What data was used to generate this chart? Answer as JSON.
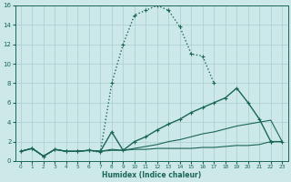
{
  "xlabel": "Humidex (Indice chaleur)",
  "xlim": [
    -0.5,
    23.5
  ],
  "ylim": [
    0,
    16
  ],
  "xticks": [
    0,
    1,
    2,
    3,
    4,
    5,
    6,
    7,
    8,
    9,
    10,
    11,
    12,
    13,
    14,
    15,
    16,
    17,
    18,
    19,
    20,
    21,
    22,
    23
  ],
  "yticks": [
    0,
    2,
    4,
    6,
    8,
    10,
    12,
    14,
    16
  ],
  "bg_color": "#cce8e8",
  "grid_color": "#aacece",
  "line_color": "#1a6655",
  "lines": [
    {
      "x": [
        0,
        1,
        2,
        3,
        4,
        5,
        6,
        7,
        8,
        9,
        10,
        11,
        12,
        13,
        14,
        15,
        16,
        17,
        18,
        19,
        20,
        21,
        22,
        23
      ],
      "y": [
        1.0,
        1.3,
        0.5,
        1.2,
        1.0,
        1.0,
        1.1,
        1.0,
        1.1,
        1.1,
        1.2,
        1.2,
        1.3,
        1.3,
        1.3,
        1.3,
        1.4,
        1.4,
        1.5,
        1.6,
        1.6,
        1.7,
        2.0,
        2.0
      ],
      "ls": "-",
      "marker": null,
      "lw": 0.8,
      "ms": 0
    },
    {
      "x": [
        0,
        1,
        2,
        3,
        4,
        5,
        6,
        7,
        8,
        9,
        10,
        11,
        12,
        13,
        14,
        15,
        16,
        17,
        18,
        19,
        20,
        21,
        22,
        23
      ],
      "y": [
        1.0,
        1.3,
        0.5,
        1.2,
        1.0,
        1.0,
        1.1,
        1.0,
        1.2,
        1.1,
        1.3,
        1.5,
        1.7,
        2.0,
        2.2,
        2.5,
        2.8,
        3.0,
        3.3,
        3.6,
        3.8,
        4.0,
        4.2,
        2.0
      ],
      "ls": "-",
      "marker": null,
      "lw": 0.8,
      "ms": 0
    },
    {
      "x": [
        0,
        1,
        2,
        3,
        4,
        5,
        6,
        7,
        8,
        9,
        10,
        11,
        12,
        13,
        14,
        15,
        16,
        17,
        18,
        19,
        20,
        21,
        22,
        23
      ],
      "y": [
        1.0,
        1.3,
        0.5,
        1.2,
        1.0,
        1.0,
        1.1,
        1.0,
        3.0,
        1.1,
        2.0,
        2.5,
        3.2,
        3.8,
        4.3,
        5.0,
        5.5,
        6.0,
        6.5,
        7.5,
        6.0,
        4.3,
        2.0,
        2.0
      ],
      "ls": "-",
      "marker": "+",
      "lw": 1.0,
      "ms": 3
    },
    {
      "x": [
        0,
        1,
        2,
        3,
        4,
        5,
        6,
        7,
        8,
        9,
        10,
        11,
        12,
        13,
        14,
        15,
        16,
        17,
        18,
        19,
        20,
        21,
        22
      ],
      "y": [
        1.0,
        1.3,
        0.5,
        1.2,
        1.0,
        1.0,
        1.1,
        0.9,
        8.0,
        12.0,
        15.0,
        15.5,
        16.0,
        15.5,
        13.8,
        11.0,
        10.8,
        8.0,
        null,
        null,
        null,
        null,
        2.0
      ],
      "ls": ":",
      "marker": "+",
      "lw": 1.0,
      "ms": 3
    }
  ]
}
